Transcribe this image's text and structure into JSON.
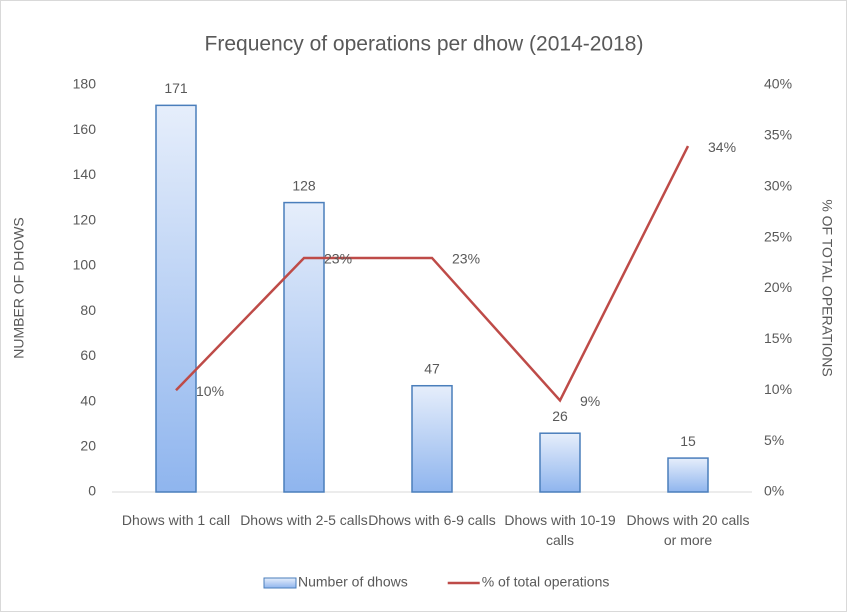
{
  "chart_data": {
    "type": "bar",
    "title": "Frequency of operations per dhow (2014-2018)",
    "y_label": "NUMBER OF DHOWS",
    "y2_label": "% OF TOTAL OPERATIONS",
    "categories": [
      "Dhows with 1 call",
      "Dhows with 2-5 calls",
      "Dhows with 6-9 calls",
      "Dhows with 10-19 calls",
      "Dhows with 20 calls or more"
    ],
    "series": [
      {
        "name": "Number of dhows",
        "type": "bar",
        "color": "#4a7ebb",
        "values": [
          171,
          128,
          47,
          26,
          15
        ]
      },
      {
        "name": "% of total operations",
        "type": "line",
        "axis": "y2",
        "color": "#be4b48",
        "values": [
          10,
          23,
          23,
          9,
          34
        ],
        "value_labels": [
          "10%",
          "23%",
          "23%",
          "9%",
          "34%"
        ]
      }
    ],
    "ylim": [
      0,
      180
    ],
    "yticks": [
      0,
      20,
      40,
      60,
      80,
      100,
      120,
      140,
      160,
      180
    ],
    "y2lim": [
      0,
      40
    ],
    "y2ticks": [
      {
        "value": 0,
        "label": "0%"
      },
      {
        "value": 5,
        "label": "5%"
      },
      {
        "value": 10,
        "label": "10%"
      },
      {
        "value": 15,
        "label": "15%"
      },
      {
        "value": 20,
        "label": "20%"
      },
      {
        "value": 25,
        "label": "25%"
      },
      {
        "value": 30,
        "label": "30%"
      },
      {
        "value": 35,
        "label": "35%"
      },
      {
        "value": 40,
        "label": "40%"
      }
    ],
    "grid": false,
    "legend": "bottom"
  }
}
